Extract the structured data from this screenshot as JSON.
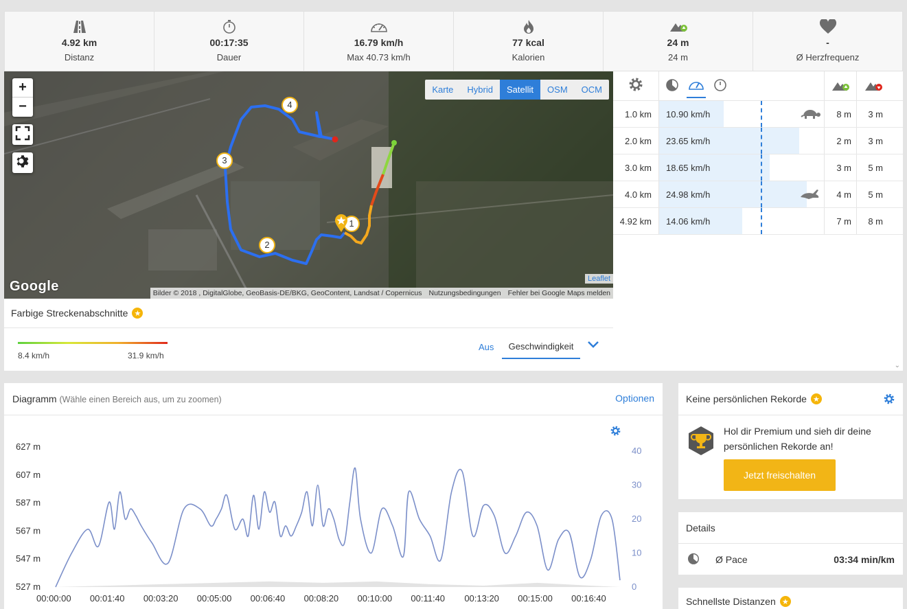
{
  "stats": [
    {
      "icon": "road-icon",
      "value": "4.92 km",
      "label": "Distanz"
    },
    {
      "icon": "stopwatch-icon",
      "value": "00:17:35",
      "label": "Dauer"
    },
    {
      "icon": "speedometer-icon",
      "value": "16.79 km/h",
      "label": "Max 40.73 km/h"
    },
    {
      "icon": "flame-icon",
      "value": "77 kcal",
      "label": "Kalorien"
    },
    {
      "icon": "elevation-up-icon",
      "value": "24 m",
      "label": "24 m"
    },
    {
      "icon": "heart-icon",
      "value": "-",
      "label": "Ø Herzfrequenz"
    }
  ],
  "map": {
    "zoom_in": "+",
    "zoom_out": "−",
    "layers": [
      "Karte",
      "Hybrid",
      "Satellit",
      "OSM",
      "OCM"
    ],
    "active_layer": "Satellit",
    "markers": [
      "1",
      "2",
      "3",
      "4"
    ],
    "google_logo": "Google",
    "leaflet": "Leaflet",
    "attribution": "Bilder © 2018 , DigitalGlobe, GeoBasis-DE/BKG, GeoContent, Landsat / Copernicus",
    "terms": "Nutzungsbedingungen",
    "report": "Fehler bei Google Maps melden"
  },
  "segments": {
    "title": "Farbige Streckenabschnitte",
    "min": "8.4 km/h",
    "max": "31.9 km/h",
    "mode_off": "Aus",
    "mode_selected": "Geschwindigkeit"
  },
  "splits": {
    "rows": [
      {
        "km": "1.0 km",
        "speed": "10.90 km/h",
        "speed_value": 10.9,
        "animal": "turtle-icon",
        "up": "8 m",
        "down": "3 m"
      },
      {
        "km": "2.0 km",
        "speed": "23.65 km/h",
        "speed_value": 23.65,
        "animal": "",
        "up": "2 m",
        "down": "3 m"
      },
      {
        "km": "3.0 km",
        "speed": "18.65 km/h",
        "speed_value": 18.65,
        "animal": "",
        "up": "3 m",
        "down": "5 m"
      },
      {
        "km": "4.0 km",
        "speed": "24.98 km/h",
        "speed_value": 24.98,
        "animal": "rabbit-icon",
        "up": "4 m",
        "down": "5 m"
      },
      {
        "km": "4.92 km",
        "speed": "14.06 km/h",
        "speed_value": 14.06,
        "animal": "",
        "up": "7 m",
        "down": "8 m"
      }
    ]
  },
  "diagram": {
    "title": "Diagramm",
    "hint": "(Wähle einen Bereich aus, um zu zoomen)",
    "options": "Optionen"
  },
  "chart_data": {
    "type": "line",
    "xlabel": "",
    "ylabel": "",
    "x_ticks": [
      "00:00:00",
      "00:01:40",
      "00:03:20",
      "00:05:00",
      "00:06:40",
      "00:08:20",
      "00:10:00",
      "00:11:40",
      "00:13:20",
      "00:15:00",
      "00:16:40"
    ],
    "y_left_ticks": [
      "627 m",
      "607 m",
      "587 m",
      "567 m",
      "547 m",
      "527 m"
    ],
    "y_right_ticks": [
      "40",
      "30",
      "20",
      "10",
      "0"
    ],
    "y_right_range": [
      0,
      40
    ],
    "series": [
      {
        "axis": "right",
        "color": "#7b8fc9",
        "x_seconds": [
          0,
          30,
          60,
          80,
          100,
          110,
          120,
          130,
          140,
          150,
          160,
          180,
          210,
          240,
          270,
          290,
          300,
          310,
          320,
          335,
          350,
          360,
          370,
          380,
          390,
          400,
          410,
          420,
          430,
          440,
          450,
          460,
          470,
          480,
          490,
          500,
          510,
          520,
          530,
          540,
          550,
          560,
          570,
          590,
          610,
          630,
          650,
          660,
          680,
          700,
          720,
          740,
          760,
          780,
          800,
          820,
          840,
          860,
          880,
          900,
          920,
          940,
          960,
          980,
          1000,
          1020,
          1040,
          1055
        ],
        "values": [
          0,
          10,
          17,
          12,
          25,
          17,
          28,
          20,
          23,
          21,
          18,
          13,
          7,
          23,
          23,
          18,
          20,
          23,
          27,
          17,
          20,
          15,
          27,
          17,
          28,
          22,
          25,
          15,
          18,
          15,
          18,
          22,
          28,
          18,
          30,
          18,
          23,
          20,
          14,
          13,
          25,
          35,
          20,
          10,
          23,
          18,
          9,
          28,
          20,
          15,
          8,
          28,
          34,
          15,
          24,
          21,
          10,
          15,
          22,
          18,
          5,
          14,
          16,
          3,
          8,
          21,
          20,
          2
        ]
      },
      {
        "axis": "left",
        "color": "#e3e3e3",
        "x_seconds": [
          0,
          100,
          200,
          300,
          400,
          500,
          600,
          700,
          800,
          900,
          1000,
          1055
        ],
        "values": [
          527,
          528,
          529,
          530,
          531,
          530,
          531,
          529,
          528,
          530,
          528,
          527
        ]
      }
    ]
  },
  "records": {
    "title": "Keine persönlichen Rekorde",
    "message": "Hol dir Premium und sieh dir deine persönlichen Rekorde an!",
    "cta": "Jetzt freischalten"
  },
  "details": {
    "title": "Details",
    "pace_label": "Ø Pace",
    "pace_value": "03:34 min/km"
  },
  "fastest": {
    "title": "Schnellste Distanzen"
  }
}
